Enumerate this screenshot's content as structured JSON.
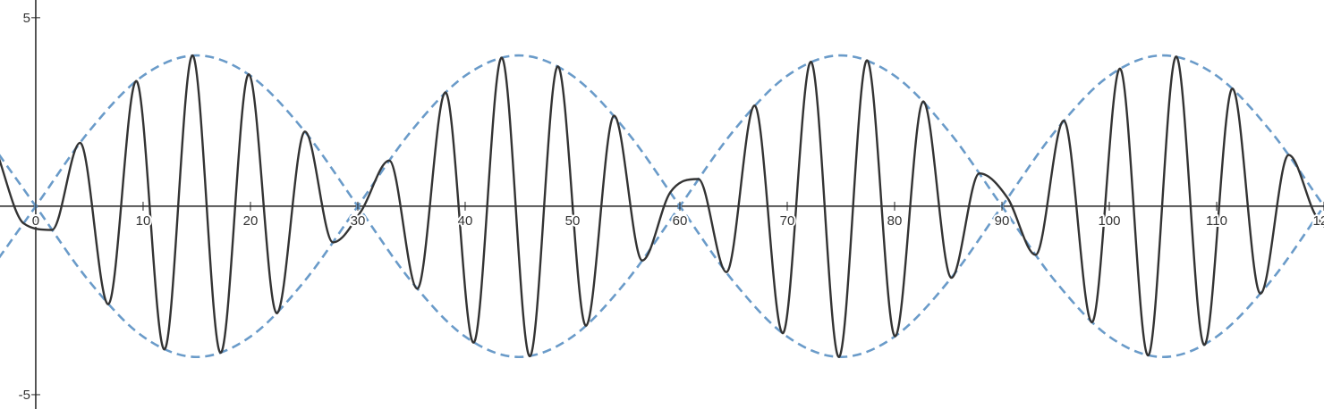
{
  "chart_data": {
    "type": "line",
    "xlim": [
      -3.33,
      120
    ],
    "ylim": [
      -5.38,
      5.47
    ],
    "xticks": [
      0,
      10,
      20,
      30,
      40,
      50,
      60,
      70,
      80,
      90,
      100,
      110,
      120
    ],
    "yticks": [
      -5,
      5
    ],
    "series": [
      {
        "color": "#333333",
        "dashed": false,
        "x": [
          -3.73,
          -1.11,
          1.51,
          4.13,
          6.75,
          9.36,
          11.98,
          14.6,
          17.22,
          19.84,
          22.45,
          25.07,
          27.69,
          30.31,
          32.93,
          35.54,
          38.16,
          40.78,
          43.4,
          46.02,
          48.63,
          51.25,
          53.87,
          56.49,
          59.11,
          61.72,
          64.34,
          66.96,
          69.58,
          72.2,
          74.81,
          77.43,
          80.05,
          82.67,
          85.29,
          87.9,
          90.52,
          93.14,
          95.76,
          98.38,
          100.99,
          103.61,
          106.23,
          108.85,
          111.47,
          114.08,
          116.7,
          119.32,
          121.94,
          124.56
        ],
        "values": [
          1.52,
          -0.46,
          -0.63,
          1.68,
          -2.6,
          3.32,
          -3.8,
          4.0,
          -3.89,
          3.5,
          -2.84,
          1.98,
          -0.96,
          -0.13,
          1.21,
          -2.19,
          3.02,
          -3.62,
          3.94,
          -3.98,
          3.71,
          -3.17,
          2.4,
          -1.44,
          0.37,
          0.72,
          -1.75,
          2.67,
          -3.37,
          3.83,
          -4.0,
          3.87,
          -3.45,
          2.78,
          -1.9,
          0.87,
          0.22,
          -1.29,
          2.27,
          -3.08,
          3.65,
          -3.96,
          3.97,
          -3.68,
          3.12,
          -2.32,
          1.36,
          -0.29,
          -0.8,
          1.84
        ]
      },
      {
        "color": "#6a9bc9",
        "dashed": true,
        "x": [
          -5,
          0,
          5,
          10,
          15,
          20,
          25,
          30,
          35,
          40,
          45,
          50,
          55,
          60,
          65,
          70,
          75,
          80,
          85,
          90,
          95,
          100,
          105,
          110,
          115,
          120,
          125
        ],
        "values": [
          -2,
          0,
          2,
          3.46,
          4,
          3.46,
          2,
          0,
          -2,
          -3.46,
          -4,
          -3.46,
          -2,
          0,
          2,
          3.46,
          4,
          3.46,
          2,
          0,
          -2,
          -3.46,
          -4,
          -3.46,
          -2,
          0,
          2
        ]
      },
      {
        "color": "#6a9bc9",
        "dashed": true,
        "x": [
          -5,
          0,
          5,
          10,
          15,
          20,
          25,
          30,
          35,
          40,
          45,
          50,
          55,
          60,
          65,
          70,
          75,
          80,
          85,
          90,
          95,
          100,
          105,
          110,
          115,
          120,
          125
        ],
        "values": [
          2,
          0,
          -2,
          -3.46,
          -4,
          -3.46,
          -2,
          0,
          2,
          3.46,
          4,
          3.46,
          2,
          0,
          -2,
          -3.46,
          -4,
          -3.46,
          -2,
          0,
          2,
          3.46,
          4,
          3.46,
          2,
          0,
          -2
        ]
      }
    ]
  }
}
